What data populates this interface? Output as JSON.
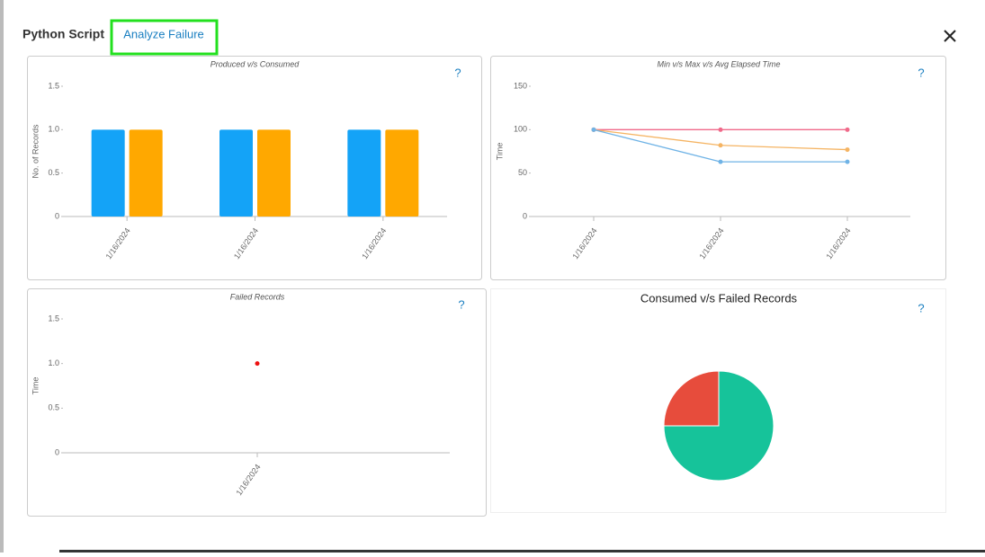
{
  "header": {
    "title": "Python Script",
    "tab": "Analyze Failure"
  },
  "chart_data": [
    {
      "type": "bar",
      "title": "Produced v/s Consumed",
      "help": "?",
      "y_label": "No. of Records",
      "categories": [
        "1/16/2024",
        "1/16/2024",
        "1/16/2024"
      ],
      "series": [
        {
          "color": "#14a3f7",
          "values": [
            1,
            1,
            1
          ]
        },
        {
          "color": "#ffa800",
          "values": [
            1,
            1,
            1
          ]
        }
      ],
      "ylim": [
        0,
        1.5
      ],
      "yticks": [
        0,
        0.5,
        {
          "value": 1,
          "label": "1.0"
        },
        1.5
      ]
    },
    {
      "type": "line",
      "title": "Min v/s Max v/s Avg Elapsed Time",
      "help": "?",
      "y_label": "Time",
      "categories": [
        "1/16/2024",
        "1/16/2024",
        "1/16/2024"
      ],
      "series": [
        {
          "color": "#f06a8a",
          "values": [
            100,
            100,
            100
          ]
        },
        {
          "color": "#f5b463",
          "values": [
            100,
            82,
            77
          ]
        },
        {
          "color": "#6fb3e6",
          "values": [
            100,
            63,
            63
          ]
        }
      ],
      "ylim": [
        0,
        150
      ],
      "yticks": [
        0,
        50,
        100,
        150
      ]
    },
    {
      "type": "scatter",
      "title": "Failed Records",
      "help": "?",
      "y_label": "Time",
      "categories": [
        "1/16/2024"
      ],
      "values": [
        1
      ],
      "color": "#ee1111",
      "ylim": [
        0,
        1.5
      ],
      "yticks": [
        0,
        0.5,
        {
          "value": 1,
          "label": "1.0"
        },
        1.5
      ]
    },
    {
      "type": "pie",
      "title": "Consumed v/s Failed Records",
      "help": "?",
      "values": [
        25,
        75
      ],
      "colors": [
        "#e74c3c",
        "#16c39a"
      ]
    }
  ]
}
